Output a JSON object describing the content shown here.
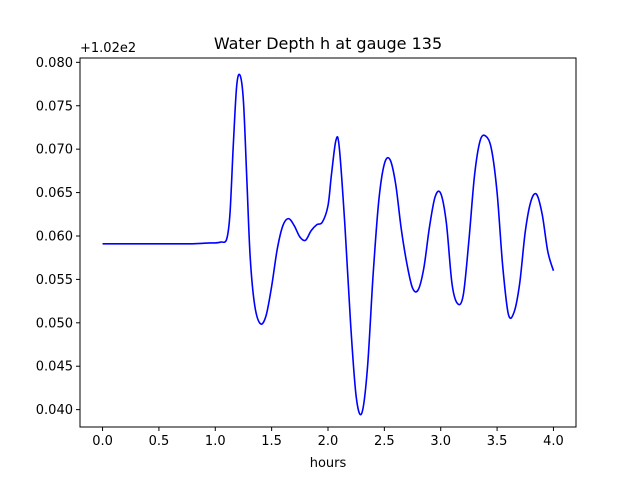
{
  "chart_data": {
    "type": "line",
    "title": "Water Depth h at gauge 135",
    "xlabel": "hours",
    "ylabel": "",
    "offset_label": "+1.02e2",
    "xlim": [
      -0.2,
      4.2
    ],
    "ylim": [
      0.038,
      0.0805
    ],
    "xticks": [
      0.0,
      0.5,
      1.0,
      1.5,
      2.0,
      2.5,
      3.0,
      3.5,
      4.0
    ],
    "xtick_labels": [
      "0.0",
      "0.5",
      "1.0",
      "1.5",
      "2.0",
      "2.5",
      "3.0",
      "3.5",
      "4.0"
    ],
    "yticks": [
      0.04,
      0.045,
      0.05,
      0.055,
      0.06,
      0.065,
      0.07,
      0.075,
      0.08
    ],
    "ytick_labels": [
      "0.040",
      "0.045",
      "0.050",
      "0.055",
      "0.060",
      "0.065",
      "0.070",
      "0.075",
      "0.080"
    ],
    "grid": false,
    "series": [
      {
        "color": "#0000ff",
        "x": [
          0.0,
          0.3,
          0.6,
          0.8,
          0.95,
          1.0,
          1.05,
          1.1,
          1.13,
          1.16,
          1.19,
          1.22,
          1.25,
          1.28,
          1.31,
          1.35,
          1.4,
          1.45,
          1.5,
          1.55,
          1.6,
          1.65,
          1.7,
          1.75,
          1.8,
          1.85,
          1.9,
          1.95,
          2.0,
          2.03,
          2.07,
          2.1,
          2.15,
          2.2,
          2.25,
          2.3,
          2.35,
          2.4,
          2.45,
          2.5,
          2.55,
          2.6,
          2.65,
          2.7,
          2.75,
          2.8,
          2.85,
          2.9,
          2.95,
          3.0,
          3.05,
          3.1,
          3.15,
          3.2,
          3.25,
          3.3,
          3.35,
          3.4,
          3.45,
          3.5,
          3.55,
          3.6,
          3.65,
          3.7,
          3.75,
          3.8,
          3.85,
          3.9,
          3.95,
          4.0
        ],
        "y": [
          0.0591,
          0.0591,
          0.0591,
          0.0591,
          0.0592,
          0.0592,
          0.0593,
          0.0596,
          0.0625,
          0.0705,
          0.0773,
          0.0785,
          0.0755,
          0.0665,
          0.0575,
          0.052,
          0.0499,
          0.0508,
          0.0542,
          0.0585,
          0.0612,
          0.062,
          0.0612,
          0.0599,
          0.0595,
          0.0606,
          0.0613,
          0.0616,
          0.0635,
          0.067,
          0.071,
          0.0702,
          0.0612,
          0.05,
          0.0415,
          0.0396,
          0.0448,
          0.0555,
          0.064,
          0.0683,
          0.0688,
          0.066,
          0.0608,
          0.0568,
          0.054,
          0.0538,
          0.0563,
          0.061,
          0.0645,
          0.0649,
          0.0615,
          0.0545,
          0.0522,
          0.0532,
          0.0595,
          0.067,
          0.071,
          0.0715,
          0.07,
          0.065,
          0.0565,
          0.051,
          0.0512,
          0.0545,
          0.0605,
          0.064,
          0.0648,
          0.0625,
          0.0582,
          0.056
        ]
      }
    ]
  }
}
